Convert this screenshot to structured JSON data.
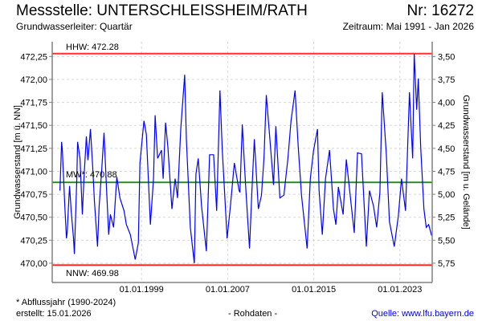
{
  "header": {
    "title": "Messstelle: UNTERSCHLEISSHEIM/RATH",
    "number": "Nr: 16272",
    "aquifer": "Grundwasserleiter: Quartär",
    "period": "Zeitraum: Mai 1991 - Jan 2026"
  },
  "footer": {
    "note": "* Abflussjahr (1990-2024)",
    "created": "erstellt:  15.01.2026",
    "data_kind": "- Rohdaten -",
    "source": "Quelle: www.lfu.bayern.de"
  },
  "colors": {
    "series": "#0000ff",
    "extreme": "#ff0000",
    "mean": "#008000",
    "grid": "#d8d8d8",
    "axis": "#808080"
  },
  "chart_data": {
    "type": "line",
    "title": "Messstelle: UNTERSCHLEISSHEIM/RATH",
    "ylabel": "Grundwasserstand [m ü. NN]",
    "ylabel_right": "Grundwasserstand [m u. Gelände]",
    "ground_level": 475.75,
    "xlim": [
      1990.7,
      2026.0
    ],
    "ylim": [
      469.79,
      472.41
    ],
    "grid": true,
    "x_ticks": [
      {
        "year": 1999,
        "label": "01.01.1999"
      },
      {
        "year": 2007,
        "label": "01.01.2007"
      },
      {
        "year": 2015,
        "label": "01.01.2015"
      },
      {
        "year": 2023,
        "label": "01.01.2023"
      }
    ],
    "y_ticks": [
      {
        "value": 470.0,
        "label": "470,00"
      },
      {
        "value": 470.25,
        "label": "470,25"
      },
      {
        "value": 470.5,
        "label": "470,50"
      },
      {
        "value": 470.75,
        "label": "470,75"
      },
      {
        "value": 471.0,
        "label": "471,00"
      },
      {
        "value": 471.25,
        "label": "471,25"
      },
      {
        "value": 471.5,
        "label": "471,50"
      },
      {
        "value": 471.75,
        "label": "471,75"
      },
      {
        "value": 472.0,
        "label": "472,00"
      },
      {
        "value": 472.25,
        "label": "472,25"
      }
    ],
    "y_ticks_right": [
      {
        "depth": 3.5,
        "label": "3,50"
      },
      {
        "depth": 3.75,
        "label": "3,75"
      },
      {
        "depth": 4.0,
        "label": "4,00"
      },
      {
        "depth": 4.25,
        "label": "4,25"
      },
      {
        "depth": 4.5,
        "label": "4,50"
      },
      {
        "depth": 4.75,
        "label": "4,75"
      },
      {
        "depth": 5.0,
        "label": "5,00"
      },
      {
        "depth": 5.25,
        "label": "5,25"
      },
      {
        "depth": 5.5,
        "label": "5,50"
      },
      {
        "depth": 5.75,
        "label": "5,75"
      }
    ],
    "reference_lines": [
      {
        "name": "HHW",
        "value": 472.28,
        "label": "HHW: 472.28",
        "color": "#ff0000"
      },
      {
        "name": "MW",
        "value": 470.88,
        "label": "MW*: 470.88",
        "color": "#008000"
      },
      {
        "name": "NNW",
        "value": 469.98,
        "label": "NNW: 469.98",
        "color": "#ff0000"
      }
    ],
    "series": [
      {
        "name": "Grundwasserstand",
        "x": [
          1991.42,
          1991.57,
          1991.64,
          1991.87,
          1992.02,
          1992.09,
          1992.24,
          1992.31,
          1992.46,
          1992.68,
          1992.76,
          1992.98,
          1993.06,
          1993.28,
          1993.5,
          1993.65,
          1993.87,
          1994.02,
          1994.25,
          1994.47,
          1994.62,
          1994.91,
          1995.06,
          1995.29,
          1995.51,
          1995.73,
          1995.95,
          1996.1,
          1996.4,
          1996.7,
          1996.99,
          1997.37,
          1997.59,
          1997.96,
          1998.41,
          1998.7,
          1998.85,
          1999.22,
          1999.45,
          1999.82,
          2000.11,
          2000.26,
          2000.49,
          2000.86,
          2001.01,
          2001.23,
          2001.45,
          2001.82,
          2002.12,
          2002.34,
          2002.64,
          2003.01,
          2003.16,
          2003.53,
          2003.9,
          2004.05,
          2004.27,
          2004.57,
          2005.02,
          2005.32,
          2005.69,
          2005.98,
          2006.28,
          2006.5,
          2006.95,
          2007.25,
          2007.62,
          2008.06,
          2008.14,
          2008.36,
          2008.66,
          2009.03,
          2009.25,
          2009.48,
          2009.85,
          2010.14,
          2010.37,
          2010.59,
          2010.89,
          2011.26,
          2011.48,
          2011.85,
          2012.22,
          2012.6,
          2012.89,
          2013.26,
          2013.56,
          2013.86,
          2014.38,
          2014.68,
          2014.97,
          2015.34,
          2015.49,
          2015.79,
          2016.09,
          2016.46,
          2016.83,
          2017.05,
          2017.28,
          2017.72,
          2018.02,
          2018.54,
          2018.76,
          2019.06,
          2019.43,
          2019.88,
          2020.17,
          2020.55,
          2020.84,
          2021.14,
          2021.36,
          2021.73,
          2022.03,
          2022.48,
          2022.85,
          2023.15,
          2023.52,
          2023.89,
          2024.19,
          2024.33,
          2024.56,
          2024.71,
          2024.93,
          2025.23,
          2025.45,
          2025.67,
          2025.95
        ],
        "values": [
          470.79,
          471.32,
          471.23,
          470.62,
          470.27,
          470.33,
          470.68,
          470.84,
          470.57,
          470.27,
          470.1,
          470.92,
          471.32,
          471.14,
          470.53,
          470.92,
          471.38,
          471.12,
          471.46,
          471.03,
          470.68,
          470.18,
          470.62,
          471.0,
          471.42,
          470.85,
          470.31,
          470.53,
          470.39,
          470.94,
          470.71,
          470.57,
          470.42,
          470.31,
          470.04,
          470.22,
          471.09,
          471.55,
          471.4,
          470.42,
          470.92,
          471.61,
          471.14,
          471.23,
          470.92,
          471.53,
          471.26,
          470.59,
          470.92,
          470.71,
          471.46,
          472.05,
          471.35,
          470.39,
          470.0,
          470.97,
          471.14,
          470.62,
          470.13,
          471.18,
          471.18,
          470.57,
          471.88,
          471.23,
          470.27,
          470.62,
          471.09,
          470.79,
          470.77,
          471.51,
          470.85,
          470.16,
          470.79,
          471.35,
          470.59,
          470.74,
          471.14,
          471.83,
          471.4,
          470.85,
          471.49,
          470.71,
          470.74,
          471.14,
          471.55,
          471.88,
          471.26,
          470.74,
          470.16,
          470.92,
          471.22,
          471.46,
          470.79,
          470.31,
          470.92,
          471.23,
          470.59,
          470.42,
          470.83,
          470.53,
          471.13,
          470.57,
          470.33,
          471.2,
          471.19,
          470.18,
          470.79,
          470.62,
          470.39,
          470.77,
          471.86,
          471.2,
          470.45,
          470.18,
          470.51,
          470.92,
          470.57,
          471.86,
          471.14,
          472.28,
          471.67,
          472.01,
          471.26,
          470.59,
          470.39,
          470.42,
          470.3
        ]
      }
    ]
  }
}
